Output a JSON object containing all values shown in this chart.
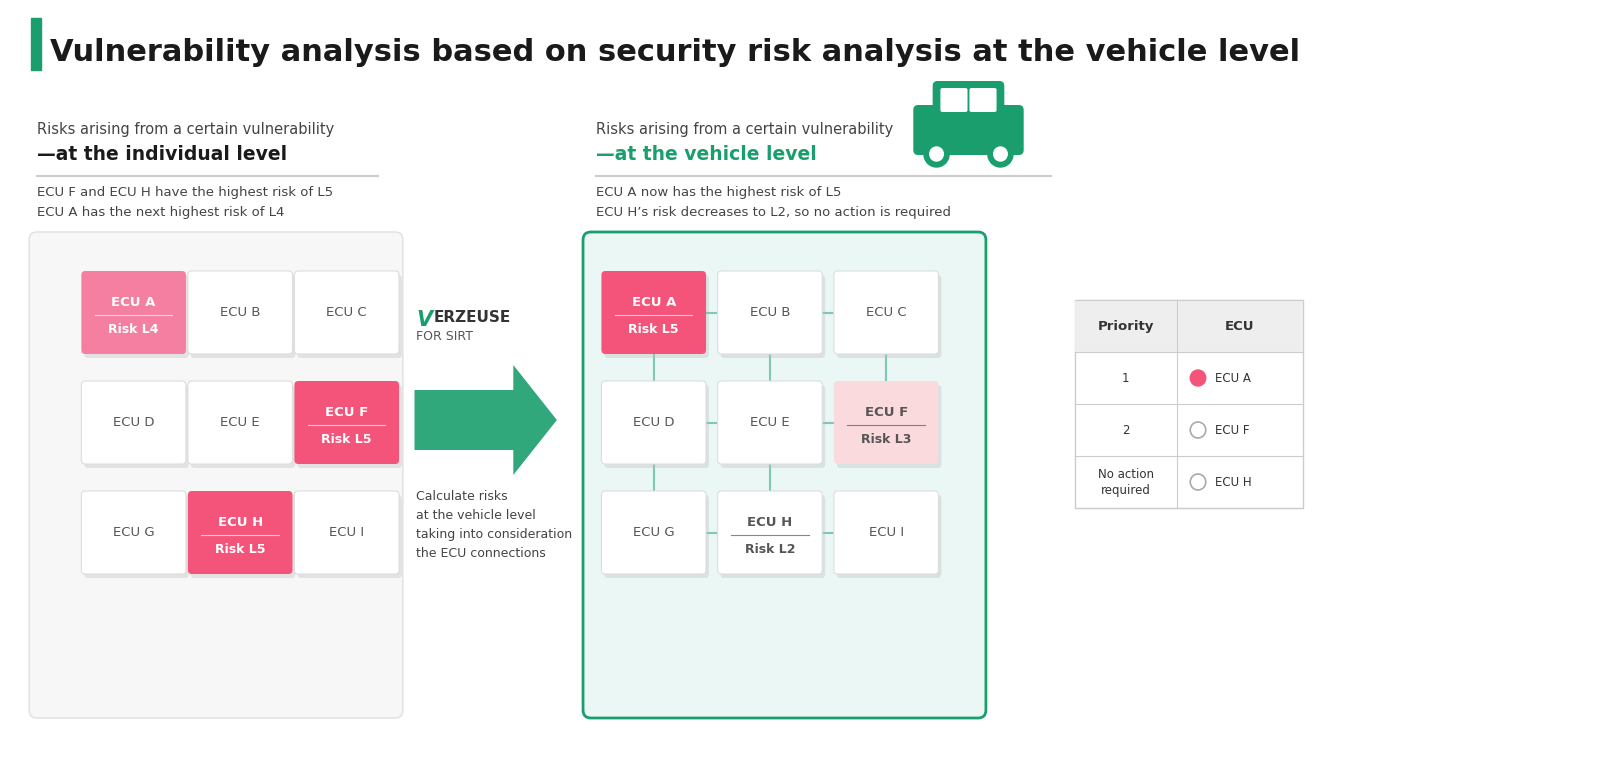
{
  "title": "Vulnerability analysis based on security risk analysis at the vehicle level",
  "title_bar_color": "#1a9e6e",
  "bg_color": "#ffffff",
  "left_section": {
    "subtitle_line1": "Risks arising from a certain vulnerability",
    "subtitle_line2": "—at the individual level",
    "desc_line1": "ECU F and ECU H have the highest risk of L5",
    "desc_line2": "ECU A has the next highest risk of L4",
    "ecus": [
      {
        "label": "ECU A",
        "risk": "Risk L4",
        "col": 0,
        "row": 0,
        "color": "#f47fa0",
        "text_color": "#ffffff",
        "bold": true
      },
      {
        "label": "ECU B",
        "risk": "",
        "col": 1,
        "row": 0,
        "color": "#ffffff",
        "text_color": "#555555",
        "bold": false
      },
      {
        "label": "ECU C",
        "risk": "",
        "col": 2,
        "row": 0,
        "color": "#ffffff",
        "text_color": "#555555",
        "bold": false
      },
      {
        "label": "ECU D",
        "risk": "",
        "col": 0,
        "row": 1,
        "color": "#ffffff",
        "text_color": "#555555",
        "bold": false
      },
      {
        "label": "ECU E",
        "risk": "",
        "col": 1,
        "row": 1,
        "color": "#ffffff",
        "text_color": "#555555",
        "bold": false
      },
      {
        "label": "ECU F",
        "risk": "Risk L5",
        "col": 2,
        "row": 1,
        "color": "#f4547a",
        "text_color": "#ffffff",
        "bold": true
      },
      {
        "label": "ECU G",
        "risk": "",
        "col": 0,
        "row": 2,
        "color": "#ffffff",
        "text_color": "#555555",
        "bold": false
      },
      {
        "label": "ECU H",
        "risk": "Risk L5",
        "col": 1,
        "row": 2,
        "color": "#f4547a",
        "text_color": "#ffffff",
        "bold": true
      },
      {
        "label": "ECU I",
        "risk": "",
        "col": 2,
        "row": 2,
        "color": "#ffffff",
        "text_color": "#555555",
        "bold": false
      }
    ]
  },
  "middle_section": {
    "arrow_color": "#1a9e6e",
    "arrow_text": "Calculate risks\nat the vehicle level\ntaking into consideration\nthe ECU connections"
  },
  "right_section": {
    "subtitle_line1": "Risks arising from a certain vulnerability",
    "subtitle_line2": "—at the vehicle level",
    "desc_line1": "ECU A now has the highest risk of L5",
    "desc_line2": "ECU H’s risk decreases to L2, so no action is required",
    "box_border": "#1a9e6e",
    "box_bg": "#eaf7f4",
    "ecus": [
      {
        "label": "ECU A",
        "risk": "Risk L5",
        "col": 0,
        "row": 0,
        "color": "#f4547a",
        "text_color": "#ffffff",
        "bold": true
      },
      {
        "label": "ECU B",
        "risk": "",
        "col": 1,
        "row": 0,
        "color": "#ffffff",
        "text_color": "#555555",
        "bold": false
      },
      {
        "label": "ECU C",
        "risk": "",
        "col": 2,
        "row": 0,
        "color": "#ffffff",
        "text_color": "#555555",
        "bold": false
      },
      {
        "label": "ECU D",
        "risk": "",
        "col": 0,
        "row": 1,
        "color": "#ffffff",
        "text_color": "#555555",
        "bold": false
      },
      {
        "label": "ECU E",
        "risk": "",
        "col": 1,
        "row": 1,
        "color": "#ffffff",
        "text_color": "#555555",
        "bold": false
      },
      {
        "label": "ECU F",
        "risk": "Risk L3",
        "col": 2,
        "row": 1,
        "color": "#fadadd",
        "text_color": "#555555",
        "bold": false
      },
      {
        "label": "ECU G",
        "risk": "",
        "col": 0,
        "row": 2,
        "color": "#ffffff",
        "text_color": "#555555",
        "bold": false
      },
      {
        "label": "ECU H",
        "risk": "Risk L2",
        "col": 1,
        "row": 2,
        "color": "#ffffff",
        "text_color": "#555555",
        "bold": false
      },
      {
        "label": "ECU I",
        "risk": "",
        "col": 2,
        "row": 2,
        "color": "#ffffff",
        "text_color": "#555555",
        "bold": false
      }
    ]
  },
  "priority_table": {
    "header": [
      "Priority",
      "ECU"
    ],
    "rows": [
      {
        "priority": "1",
        "ecu": "ECU A",
        "dot_color": "#f4547a",
        "filled": true
      },
      {
        "priority": "2",
        "ecu": "ECU F",
        "dot_color": "#cccccc",
        "filled": false
      },
      {
        "priority": "No action\nrequired",
        "ecu": "ECU H",
        "dot_color": "#cccccc",
        "filled": false
      }
    ]
  }
}
